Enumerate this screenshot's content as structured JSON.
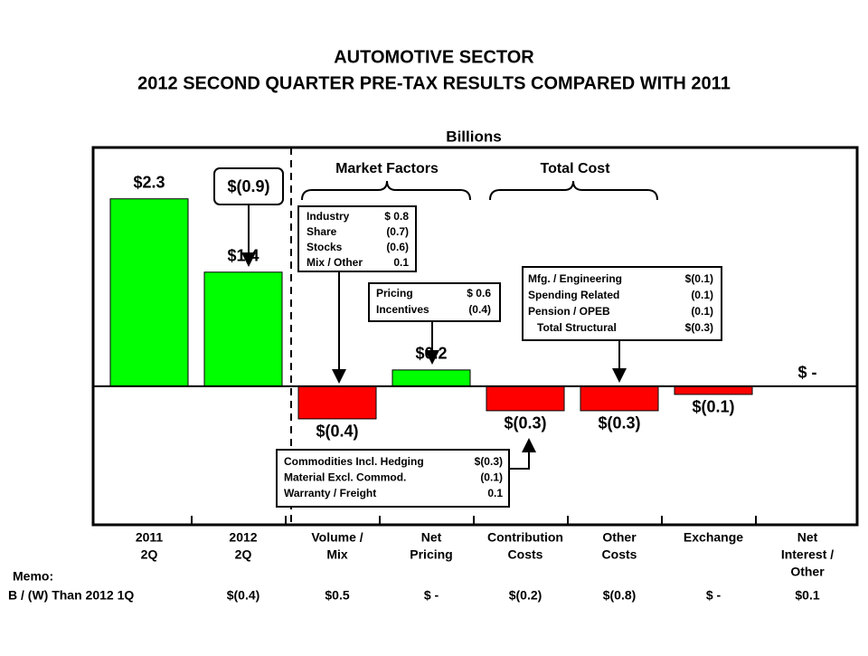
{
  "chart_data": {
    "type": "bar",
    "title": [
      "AUTOMOTIVE SECTOR",
      "2012 SECOND QUARTER PRE-TAX RESULTS COMPARED WITH 2011"
    ],
    "y_label": "Billions",
    "categories": [
      [
        "2011",
        "2Q"
      ],
      [
        "2012",
        "2Q"
      ],
      [
        "Volume /",
        "Mix"
      ],
      [
        "Net",
        "Pricing"
      ],
      [
        "Contribution",
        "Costs"
      ],
      [
        "Other",
        "Costs"
      ],
      [
        "Exchange"
      ],
      [
        "Net",
        "Interest /",
        "Other"
      ]
    ],
    "values": [
      2.3,
      1.4,
      -0.4,
      0.2,
      -0.3,
      -0.3,
      -0.1,
      0
    ],
    "value_labels": [
      "$2.3",
      "$1.4",
      "$(0.4)",
      "$0.2",
      "$(0.3)",
      "$(0.3)",
      "$(0.1)",
      "$ -"
    ],
    "colors": [
      "#00ff00",
      "#00ff00",
      "#ff0000",
      "#00ff00",
      "#ff0000",
      "#ff0000",
      "#ff0000",
      "#ff0000"
    ],
    "ylim": [
      -1.7,
      2.93
    ],
    "change_label": {
      "value": -0.9,
      "label": "$(0.9)"
    },
    "groups": [
      "Market Factors",
      "Total Cost"
    ],
    "callouts": [
      [
        [
          "Industry",
          "$ 0.8"
        ],
        [
          "Share",
          "(0.7)"
        ],
        [
          "Stocks",
          "(0.6)"
        ],
        [
          "Mix / Other",
          "0.1"
        ]
      ],
      [
        [
          "Pricing",
          "$ 0.6"
        ],
        [
          "Incentives",
          "(0.4)"
        ]
      ],
      [
        [
          "Mfg. / Engineering",
          "$(0.1)"
        ],
        [
          "Spending Related",
          "(0.1)"
        ],
        [
          "Pension / OPEB",
          "(0.1)"
        ],
        [
          "Total Structural",
          "$(0.3)"
        ]
      ],
      [
        [
          "Commodities Incl. Hedging",
          "$(0.3)"
        ],
        [
          "Material Excl. Commod.",
          "(0.1)"
        ],
        [
          "Warranty / Freight",
          "0.1"
        ]
      ]
    ],
    "memo": {
      "title": "Memo:",
      "label": "B / (W) Than 2012 1Q",
      "values": [
        null,
        "$(0.4)",
        "$0.5",
        "$ -",
        "$(0.2)",
        "$(0.8)",
        "$ -",
        "$0.1"
      ]
    }
  }
}
